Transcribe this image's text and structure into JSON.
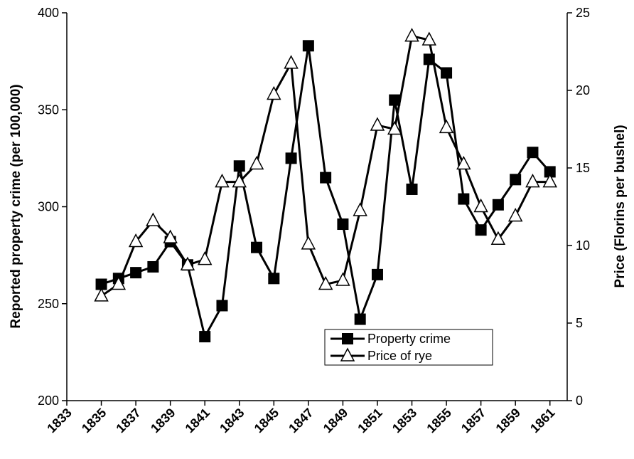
{
  "chart_data": {
    "type": "line",
    "y_label": "Reported property crime (per 100,000)",
    "y2_label": "Price (Florins per bushel)",
    "x": [
      1835,
      1836,
      1837,
      1838,
      1839,
      1840,
      1841,
      1842,
      1843,
      1844,
      1845,
      1846,
      1847,
      1848,
      1849,
      1850,
      1851,
      1852,
      1853,
      1854,
      1855,
      1856,
      1857,
      1858,
      1859,
      1860,
      1861
    ],
    "series": [
      {
        "name": "Property crime",
        "color": "#000000",
        "marker": "square",
        "values": [
          260,
          263,
          266,
          269,
          282,
          270,
          233,
          249,
          321,
          279,
          263,
          325,
          383,
          315,
          291,
          242,
          265,
          355,
          309,
          376,
          369,
          304,
          288,
          301,
          314,
          328,
          318
        ]
      },
      {
        "name": "Price of rye",
        "color": "#000000",
        "marker": "triangle",
        "axis": "y2",
        "values": [
          6.75,
          7.5,
          10.25,
          11.6,
          10.5,
          8.75,
          9.1,
          14.1,
          14.1,
          15.25,
          19.75,
          21.75,
          10.1,
          7.5,
          7.75,
          12.25,
          17.75,
          17.5,
          23.5,
          23.25,
          17.6,
          15.25,
          12.5,
          10.4,
          11.9,
          14.1,
          14.1
        ]
      }
    ],
    "xlim": [
      1833,
      1862
    ],
    "xticks": [
      1833,
      1835,
      1837,
      1839,
      1841,
      1843,
      1845,
      1847,
      1849,
      1851,
      1853,
      1855,
      1857,
      1859,
      1861
    ],
    "ylim": [
      200,
      400
    ],
    "yticks": [
      200,
      250,
      300,
      350,
      400
    ],
    "y2lim": [
      0,
      25
    ],
    "y2ticks": [
      0,
      5,
      10,
      15,
      20,
      25
    ],
    "grid": false
  }
}
